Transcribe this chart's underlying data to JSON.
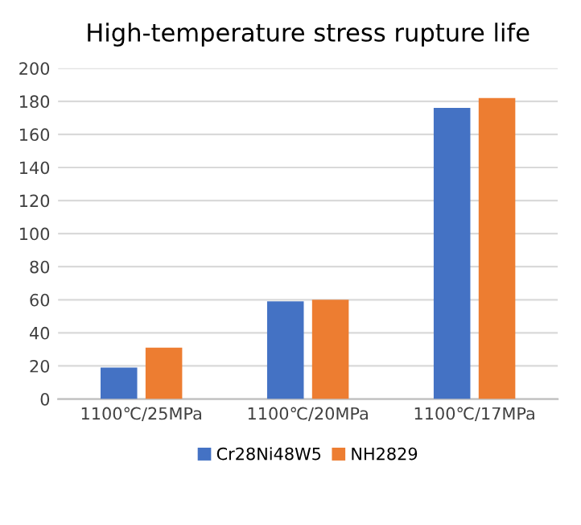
{
  "chart_data": {
    "type": "bar",
    "title": "High-temperature stress rupture life",
    "categories": [
      "1100℃/25MPa",
      "1100℃/20MPa",
      "1100℃/17MPa"
    ],
    "series": [
      {
        "name": "Cr28Ni48W5",
        "color": "#4472c4",
        "values": [
          19,
          59,
          176
        ]
      },
      {
        "name": "NH2829",
        "color": "#ed7d31",
        "values": [
          31,
          60,
          182
        ]
      }
    ],
    "ylim": [
      0,
      200
    ],
    "yticks": [
      0,
      20,
      40,
      60,
      80,
      100,
      120,
      140,
      160,
      180,
      200
    ],
    "grid": "y",
    "legend": "bottom"
  }
}
